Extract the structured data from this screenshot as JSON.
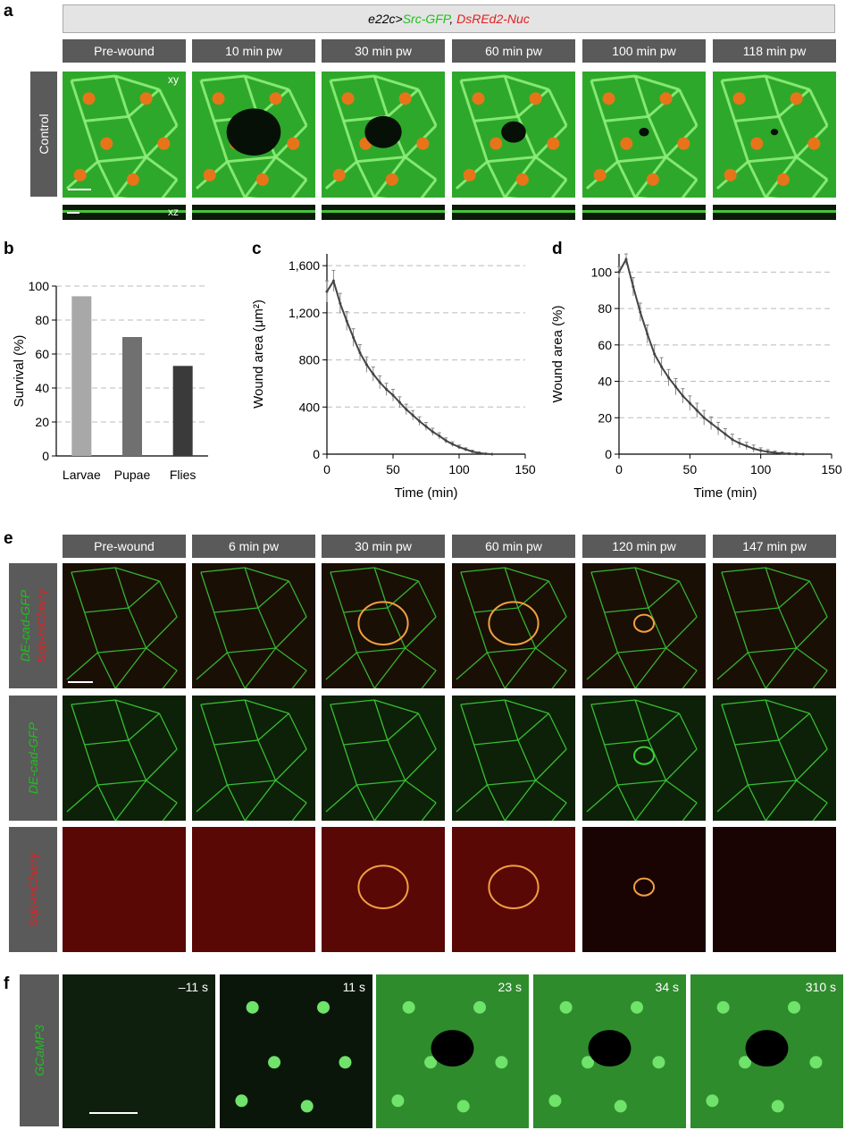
{
  "panel_labels": {
    "a": "a",
    "b": "b",
    "c": "c",
    "d": "d",
    "e": "e",
    "f": "f"
  },
  "panel_a": {
    "genotype_parts": [
      {
        "text": "e22c>",
        "color": "#000000"
      },
      {
        "text": "Src-GFP",
        "color": "#1fbf1f"
      },
      {
        "text": ", ",
        "color": "#000000"
      },
      {
        "text": "DsREd2-Nuc",
        "color": "#e02020"
      }
    ],
    "row_label": "Control",
    "timepoints": [
      "Pre-wound",
      "10 min pw",
      "30 min pw",
      "60 min pw",
      "100 min pw",
      "118 min pw"
    ],
    "xy_label": "xy",
    "xz_label": "xz"
  },
  "panel_e": {
    "timepoints": [
      "Pre-wound",
      "6 min pw",
      "30 min pw",
      "60 min pw",
      "120 min pw",
      "147 min pw"
    ],
    "row_labels": [
      {
        "parts": [
          {
            "text": "DE-cad-GFP",
            "color": "#1fbf1f"
          },
          {
            "text": "Sqh-mCherry",
            "color": "#e02020"
          }
        ]
      },
      {
        "parts": [
          {
            "text": "DE-cad-GFP",
            "color": "#1fbf1f"
          }
        ]
      },
      {
        "parts": [
          {
            "text": "Sqh-mCherry",
            "color": "#e02020"
          }
        ]
      }
    ]
  },
  "panel_f": {
    "row_label": "GCaMP3",
    "row_label_color": "#1fbf1f",
    "timepoints": [
      "–11 s",
      "11 s",
      "23 s",
      "34 s",
      "310 s"
    ]
  },
  "chart_data": [
    {
      "panel": "b",
      "type": "bar",
      "categories": [
        "Larvae",
        "Pupae",
        "Flies"
      ],
      "values": [
        94,
        70,
        53
      ],
      "colors": [
        "#a8a8a8",
        "#707070",
        "#3a3a3a"
      ],
      "ylabel": "Survival (%)",
      "ylim": [
        0,
        100
      ],
      "yticks": [
        0,
        20,
        40,
        60,
        80,
        100
      ],
      "grid": true
    },
    {
      "panel": "c",
      "type": "line",
      "xlabel": "Time (min)",
      "ylabel": "Wound area (μm²)",
      "xlim": [
        0,
        150
      ],
      "ylim": [
        0,
        1700
      ],
      "xticks": [
        0,
        50,
        100,
        150
      ],
      "yticks": [
        0,
        400,
        800,
        1200,
        1600
      ],
      "ytick_labels": [
        "0",
        "400",
        "800",
        "1,200",
        "1,600"
      ],
      "x": [
        0,
        5,
        10,
        15,
        20,
        25,
        30,
        35,
        40,
        45,
        50,
        55,
        60,
        65,
        70,
        75,
        80,
        85,
        90,
        95,
        100,
        105,
        110,
        115,
        120,
        125
      ],
      "y": [
        1380,
        1470,
        1280,
        1130,
        990,
        860,
        760,
        680,
        610,
        550,
        500,
        440,
        380,
        330,
        280,
        235,
        190,
        155,
        115,
        85,
        60,
        40,
        22,
        10,
        3,
        0
      ],
      "error": [
        90,
        90,
        85,
        80,
        75,
        70,
        65,
        60,
        55,
        52,
        50,
        47,
        44,
        40,
        37,
        34,
        30,
        27,
        23,
        20,
        17,
        14,
        11,
        8,
        5,
        3
      ],
      "grid": true
    },
    {
      "panel": "d",
      "type": "line",
      "xlabel": "Time (min)",
      "ylabel": "Wound area (%)",
      "xlim": [
        0,
        150
      ],
      "ylim": [
        0,
        110
      ],
      "xticks": [
        0,
        50,
        100,
        150
      ],
      "yticks": [
        0,
        20,
        40,
        60,
        80,
        100
      ],
      "x": [
        0,
        5,
        10,
        15,
        20,
        25,
        30,
        35,
        40,
        45,
        50,
        55,
        60,
        65,
        70,
        75,
        80,
        85,
        90,
        95,
        100,
        105,
        110,
        115,
        120,
        125,
        130
      ],
      "y": [
        100,
        107,
        92,
        78,
        66,
        55,
        48,
        42,
        37,
        32,
        28,
        24,
        20,
        17,
        14,
        11,
        8,
        6,
        4.5,
        3,
        2,
        1.3,
        0.8,
        0.4,
        0.2,
        0.1,
        0
      ],
      "error": [
        3,
        3,
        5,
        5,
        5,
        5,
        5,
        4.5,
        4.5,
        4,
        4,
        4,
        4,
        3.5,
        3.5,
        3,
        3,
        2.5,
        2,
        2,
        1.5,
        1.2,
        1,
        0.8,
        0.5,
        0.3,
        0.2
      ],
      "grid": true
    }
  ]
}
